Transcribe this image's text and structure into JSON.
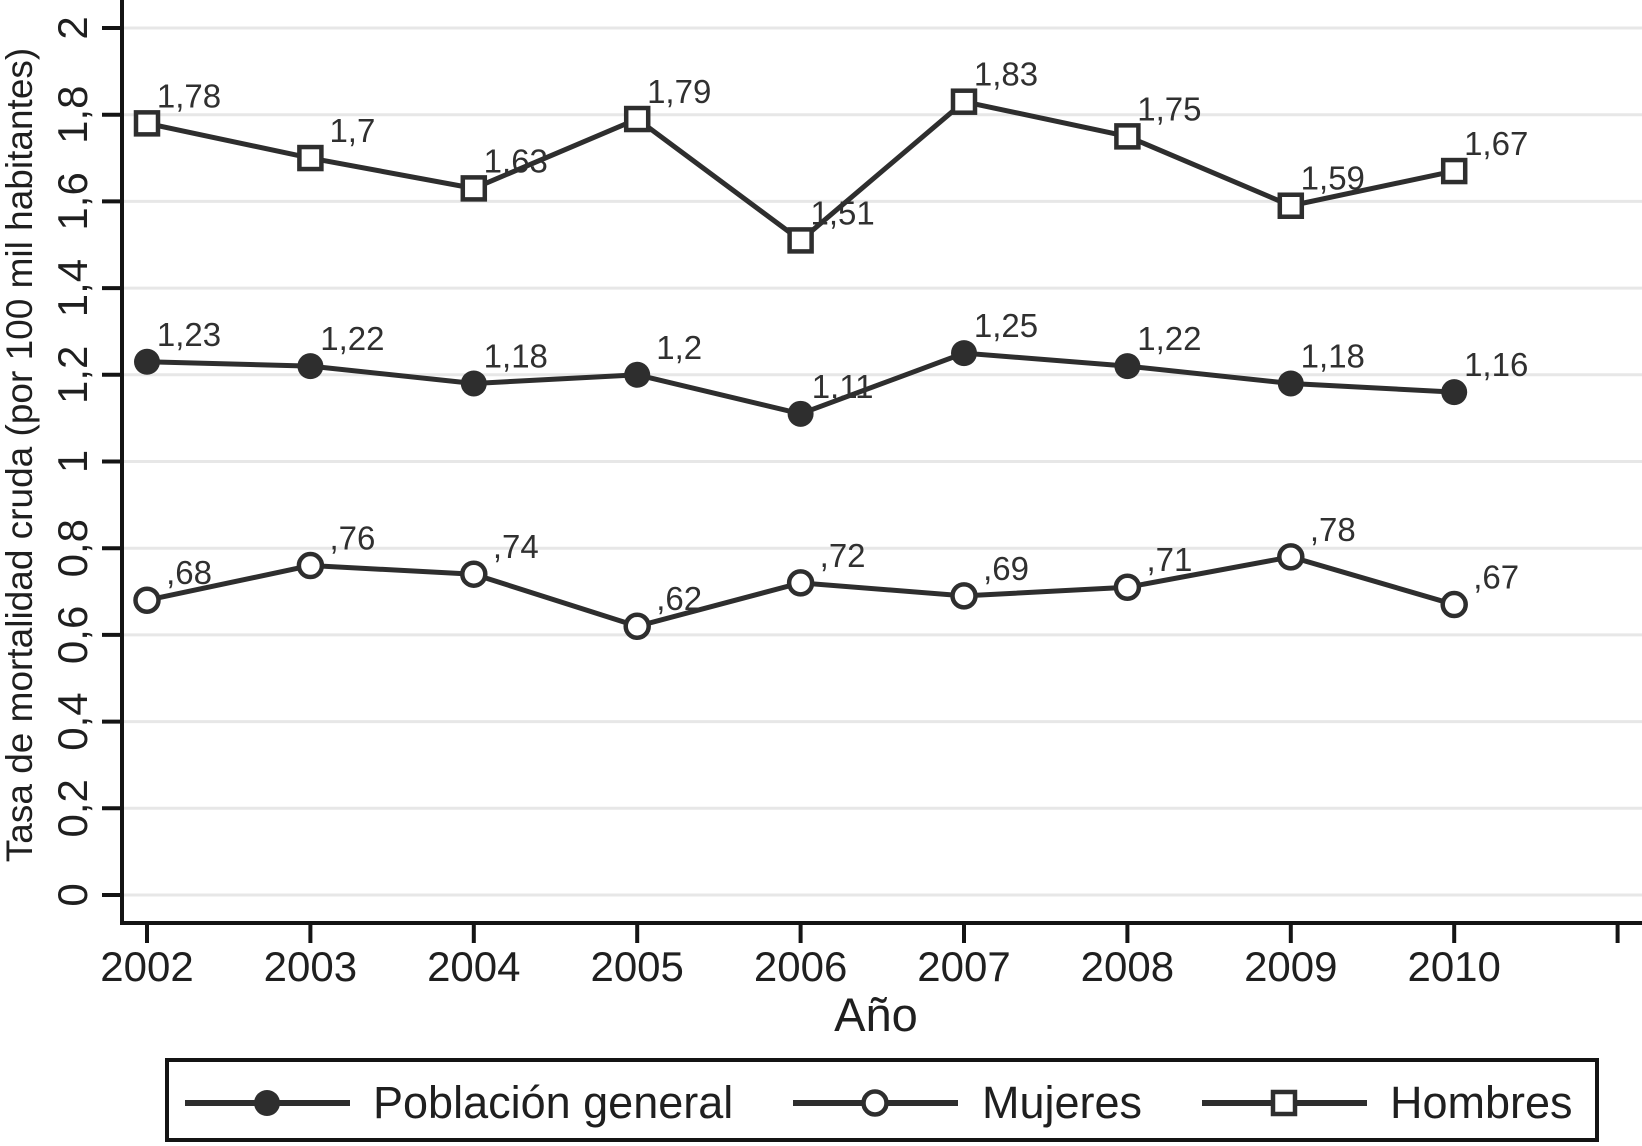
{
  "chart_data": {
    "type": "line",
    "title": "",
    "xlabel": "Año",
    "ylabel": "Tasa de mortalidad cruda (por 100 mil habitantes)",
    "x": [
      2002,
      2003,
      2004,
      2005,
      2006,
      2007,
      2008,
      2009,
      2010
    ],
    "x_ticks": [
      2002,
      2003,
      2004,
      2005,
      2006,
      2007,
      2008,
      2009,
      2010,
      2011
    ],
    "x_tick_labels": [
      "2002",
      "2003",
      "2004",
      "2005",
      "2006",
      "2007",
      "2008",
      "2009",
      "2010",
      ""
    ],
    "ylim": [
      0,
      2
    ],
    "y_ticks": [
      0,
      0.2,
      0.4,
      0.6,
      0.8,
      1,
      1.2,
      1.4,
      1.6,
      1.8,
      2
    ],
    "y_tick_labels": [
      "0",
      "0,2",
      "0,4",
      "0,6",
      "0,8",
      "1",
      "1,2",
      "1,4",
      "1,6",
      "1,8",
      "2"
    ],
    "grid": true,
    "legend_position": "bottom",
    "series": [
      {
        "name": "Población general",
        "marker": "filled-circle",
        "values": [
          1.23,
          1.22,
          1.18,
          1.2,
          1.11,
          1.25,
          1.22,
          1.18,
          1.16
        ],
        "point_labels": [
          "1,23",
          "1,22",
          "1,18",
          "1,2",
          "1,11",
          "1,25",
          "1,22",
          "1,18",
          "1,16"
        ]
      },
      {
        "name": "Mujeres",
        "marker": "open-circle",
        "values": [
          0.68,
          0.76,
          0.74,
          0.62,
          0.72,
          0.69,
          0.71,
          0.78,
          0.67
        ],
        "point_labels": [
          ",68",
          ",76",
          ",74",
          ",62",
          ",72",
          ",69",
          ",71",
          ",78",
          ",67"
        ]
      },
      {
        "name": "Hombres",
        "marker": "open-square",
        "values": [
          1.78,
          1.7,
          1.63,
          1.79,
          1.51,
          1.83,
          1.75,
          1.59,
          1.67
        ],
        "point_labels": [
          "1,78",
          "1,7",
          "1,63",
          "1,79",
          "1,51",
          "1,83",
          "1,75",
          "1,59",
          "1,67"
        ]
      }
    ],
    "colors": {
      "series_line": "#2e2e2e",
      "axis": "#141414",
      "grid": "#e7e7e7",
      "marker_fill": "#2e2e2e",
      "open_marker_fill": "#ffffff",
      "background": "#ffffff"
    }
  }
}
